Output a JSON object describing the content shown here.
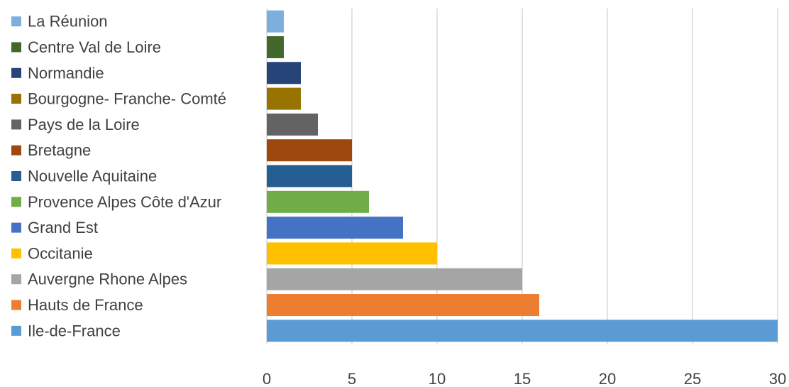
{
  "chart_data": {
    "type": "bar",
    "orientation": "horizontal",
    "title": "",
    "xlabel": "",
    "ylabel": "",
    "xlim": [
      0,
      30
    ],
    "x_ticks": [
      0,
      5,
      10,
      15,
      20,
      25,
      30
    ],
    "grid": true,
    "legend_position": "left",
    "categories": [
      "Ile-de-France",
      "Hauts de France",
      "Auvergne Rhone Alpes",
      "Occitanie",
      "Grand Est",
      "Provence Alpes Côte d'Azur",
      "Nouvelle Aquitaine",
      "Bretagne",
      "Pays de la Loire",
      "Bourgogne- Franche- Comté",
      "Normandie",
      "Centre Val  de Loire",
      "La Réunion"
    ],
    "values": [
      30,
      16,
      15,
      10,
      8,
      6,
      5,
      5,
      3,
      2,
      2,
      1,
      1
    ],
    "colors": [
      "#5b9bd5",
      "#ed7d31",
      "#a5a5a5",
      "#ffc000",
      "#4472c4",
      "#70ad47",
      "#255e91",
      "#9e480e",
      "#636363",
      "#997300",
      "#264478",
      "#43682b",
      "#7cafdd"
    ]
  }
}
